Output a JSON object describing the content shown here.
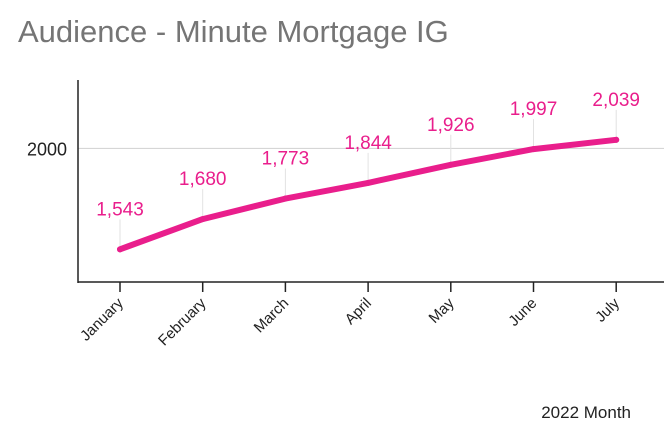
{
  "title": "Audience - Minute Mortgage IG",
  "chart_data": {
    "type": "line",
    "title": "Audience - Minute Mortgage IG",
    "xlabel": "2022 Month",
    "ylabel": "",
    "categories": [
      "January",
      "February",
      "March",
      "April",
      "May",
      "June",
      "July"
    ],
    "series": [
      {
        "values": [
          1543,
          1680,
          1773,
          1844,
          1926,
          1997,
          2039
        ],
        "color": "#E91E8C"
      }
    ],
    "data_labels": [
      "1,543",
      "1,680",
      "1,773",
      "1,844",
      "1,926",
      "1,997",
      "2,039"
    ],
    "y_ticks": [
      2000
    ],
    "y_tick_labels": [
      "2000"
    ],
    "ylim": [
      1395,
      2310
    ],
    "grid": true,
    "legend": "none"
  }
}
